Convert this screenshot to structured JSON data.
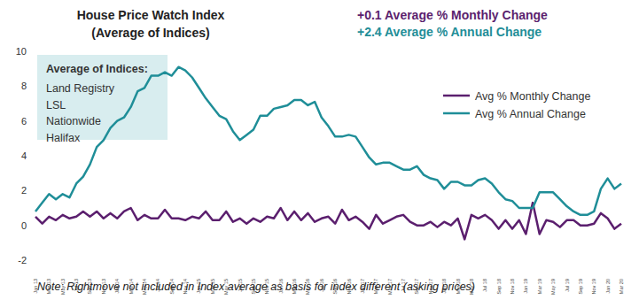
{
  "chart_data": {
    "type": "line",
    "title": "House Price Watch Index",
    "subtitle": "(Average of Indices)",
    "annotations": [
      {
        "text": "+0.1 Average % Monthly Change",
        "color": "#5b1f6e"
      },
      {
        "text": "+2.4 Average % Annual Change",
        "color": "#1f8e98"
      }
    ],
    "box": {
      "title": "Average of Indices:",
      "items": [
        "Land Registry",
        "LSL",
        "Nationwide",
        "Halifax"
      ],
      "color": "#d8edef"
    },
    "note": "Note: Rightmove not included in Index average as basis for index different (asking prices)",
    "categories": [
      "Jan 13",
      null,
      "Mar 13",
      null,
      "May 13",
      null,
      "Jul 13",
      null,
      "Sep 13",
      null,
      "Nov 13",
      null,
      "Jan 14",
      null,
      "Mar 14",
      null,
      "May 14",
      null,
      "Jul 14",
      null,
      "Sep 14",
      null,
      "Nov 14",
      null,
      "Jan 15",
      null,
      "Mar 15",
      null,
      "May 15",
      null,
      "Jul 15",
      null,
      "Sep 15",
      null,
      "Nov 15",
      null,
      "Jan 16",
      null,
      "Mar 16",
      null,
      "May 16",
      null,
      "Jul 16",
      null,
      "Sep 16",
      null,
      "Nov 16",
      null,
      "Jan 17",
      null,
      "Mar 17",
      null,
      "May 17",
      null,
      "Jul 17",
      null,
      "Sep 17",
      null,
      "Nov 17",
      null,
      "Jan 18",
      null,
      "Mar 18",
      null,
      "May 18",
      null,
      "Jul 18",
      null,
      "Sep 18",
      null,
      "Nov 18",
      null,
      "Jan 19",
      null,
      "Mar 19",
      null,
      "May 19",
      null,
      "Jul 19",
      null,
      "Sep 19",
      null,
      "Nov 19",
      null,
      "Jan 20",
      null,
      "Mar 20"
    ],
    "series": [
      {
        "name": "Avg % Monthly Change",
        "color": "#5b1f6e",
        "values": [
          0.5,
          0.1,
          0.5,
          0.3,
          0.6,
          0.4,
          0.5,
          0.8,
          0.5,
          0.8,
          0.4,
          0.7,
          0.4,
          0.8,
          1.0,
          0.3,
          0.6,
          0.4,
          0.4,
          0.9,
          0.4,
          0.4,
          0.3,
          0.5,
          0.4,
          0.8,
          0.3,
          0.3,
          0.8,
          0.2,
          0.4,
          0.1,
          0.4,
          0.2,
          0.5,
          0.4,
          1.0,
          0.3,
          0.8,
          0.3,
          0.7,
          0.2,
          0.4,
          0.5,
          0.1,
          0.9,
          0.3,
          0.5,
          0.2,
          -0.2,
          0.6,
          0.1,
          0.3,
          0.5,
          0.6,
          0.2,
          0.0,
          0.0,
          0.2,
          -0.1,
          0.2,
          0.0,
          0.4,
          -0.8,
          0.6,
          0.4,
          0.6,
          0.3,
          -0.2,
          0.3,
          -0.2,
          0.3,
          -0.5,
          1.3,
          -0.5,
          0.3,
          0.2,
          -0.1,
          0.3,
          0.3,
          0.0,
          0.0,
          0.1,
          0.7,
          0.4,
          -0.2,
          0.1
        ]
      },
      {
        "name": "Avg % Annual Change",
        "color": "#1f8e98",
        "values": [
          0.8,
          1.3,
          1.8,
          1.5,
          1.8,
          1.6,
          2.4,
          2.8,
          3.5,
          4.5,
          4.9,
          5.6,
          6.0,
          6.2,
          6.8,
          7.7,
          7.9,
          8.6,
          8.6,
          8.8,
          8.6,
          9.1,
          8.9,
          8.5,
          7.9,
          7.3,
          6.8,
          6.3,
          6.1,
          5.4,
          4.9,
          5.2,
          5.5,
          6.3,
          6.3,
          6.7,
          6.8,
          6.9,
          7.2,
          7.2,
          6.9,
          7.1,
          6.2,
          5.7,
          5.1,
          5.1,
          5.2,
          5.1,
          4.5,
          3.9,
          3.5,
          3.6,
          3.6,
          3.4,
          3.2,
          3.2,
          3.4,
          2.9,
          2.7,
          2.6,
          2.1,
          2.5,
          2.5,
          2.3,
          2.3,
          2.6,
          2.7,
          2.4,
          1.9,
          1.5,
          1.4,
          1.0,
          1.0,
          1.0,
          1.9,
          1.9,
          1.9,
          1.5,
          1.1,
          0.8,
          0.6,
          0.6,
          0.8,
          2.1,
          2.7,
          2.1,
          2.4
        ]
      }
    ],
    "ylim": [
      -2,
      10
    ],
    "yticks": [
      -2,
      0,
      2,
      4,
      6,
      8,
      10
    ],
    "grid": false,
    "legend": "top-right"
  }
}
